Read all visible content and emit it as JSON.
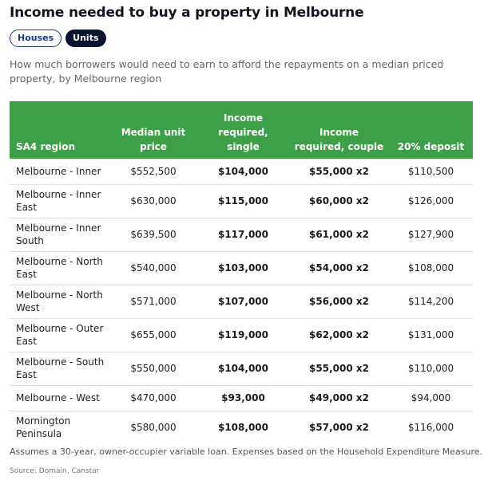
{
  "title": "Income needed to buy a property in Melbourne",
  "toggles": {
    "houses": "Houses",
    "units": "Units",
    "selected": "Units"
  },
  "subtitle": "How much borrowers would need to earn to afford the repayments on a median priced property, by Melbourne region",
  "colors": {
    "header_bg": "#3f9e48",
    "active_pill": "#0c1330",
    "pill_border": "#1f3a8a"
  },
  "table": {
    "headers": [
      "SA4 region",
      "Median unit price",
      "Income required, single",
      "Income required, couple",
      "20% deposit"
    ],
    "rows": [
      [
        "Melbourne - Inner",
        "$552,500",
        "$104,000",
        "$55,000 x2",
        "$110,500"
      ],
      [
        "Melbourne - Inner East",
        "$630,000",
        "$115,000",
        "$60,000 x2",
        "$126,000"
      ],
      [
        "Melbourne - Inner South",
        "$639,500",
        "$117,000",
        "$61,000 x2",
        "$127,900"
      ],
      [
        "Melbourne - North East",
        "$540,000",
        "$103,000",
        "$54,000 x2",
        "$108,000"
      ],
      [
        "Melbourne - North West",
        "$571,000",
        "$107,000",
        "$56,000 x2",
        "$114,200"
      ],
      [
        "Melbourne - Outer East",
        "$655,000",
        "$119,000",
        "$62,000 x2",
        "$131,000"
      ],
      [
        "Melbourne - South East",
        "$550,000",
        "$104,000",
        "$55,000 x2",
        "$110,000"
      ],
      [
        "Melbourne - West",
        "$470,000",
        "$93,000",
        "$49,000 x2",
        "$94,000"
      ],
      [
        "Mornington Peninsula",
        "$580,000",
        "$108,000",
        "$57,000 x2",
        "$116,000"
      ]
    ]
  },
  "note": "Assumes a 30-year, owner-occupier variable loan. Expenses based on the Household Expenditure Measure.",
  "source": "Source: Domain, Canstar"
}
